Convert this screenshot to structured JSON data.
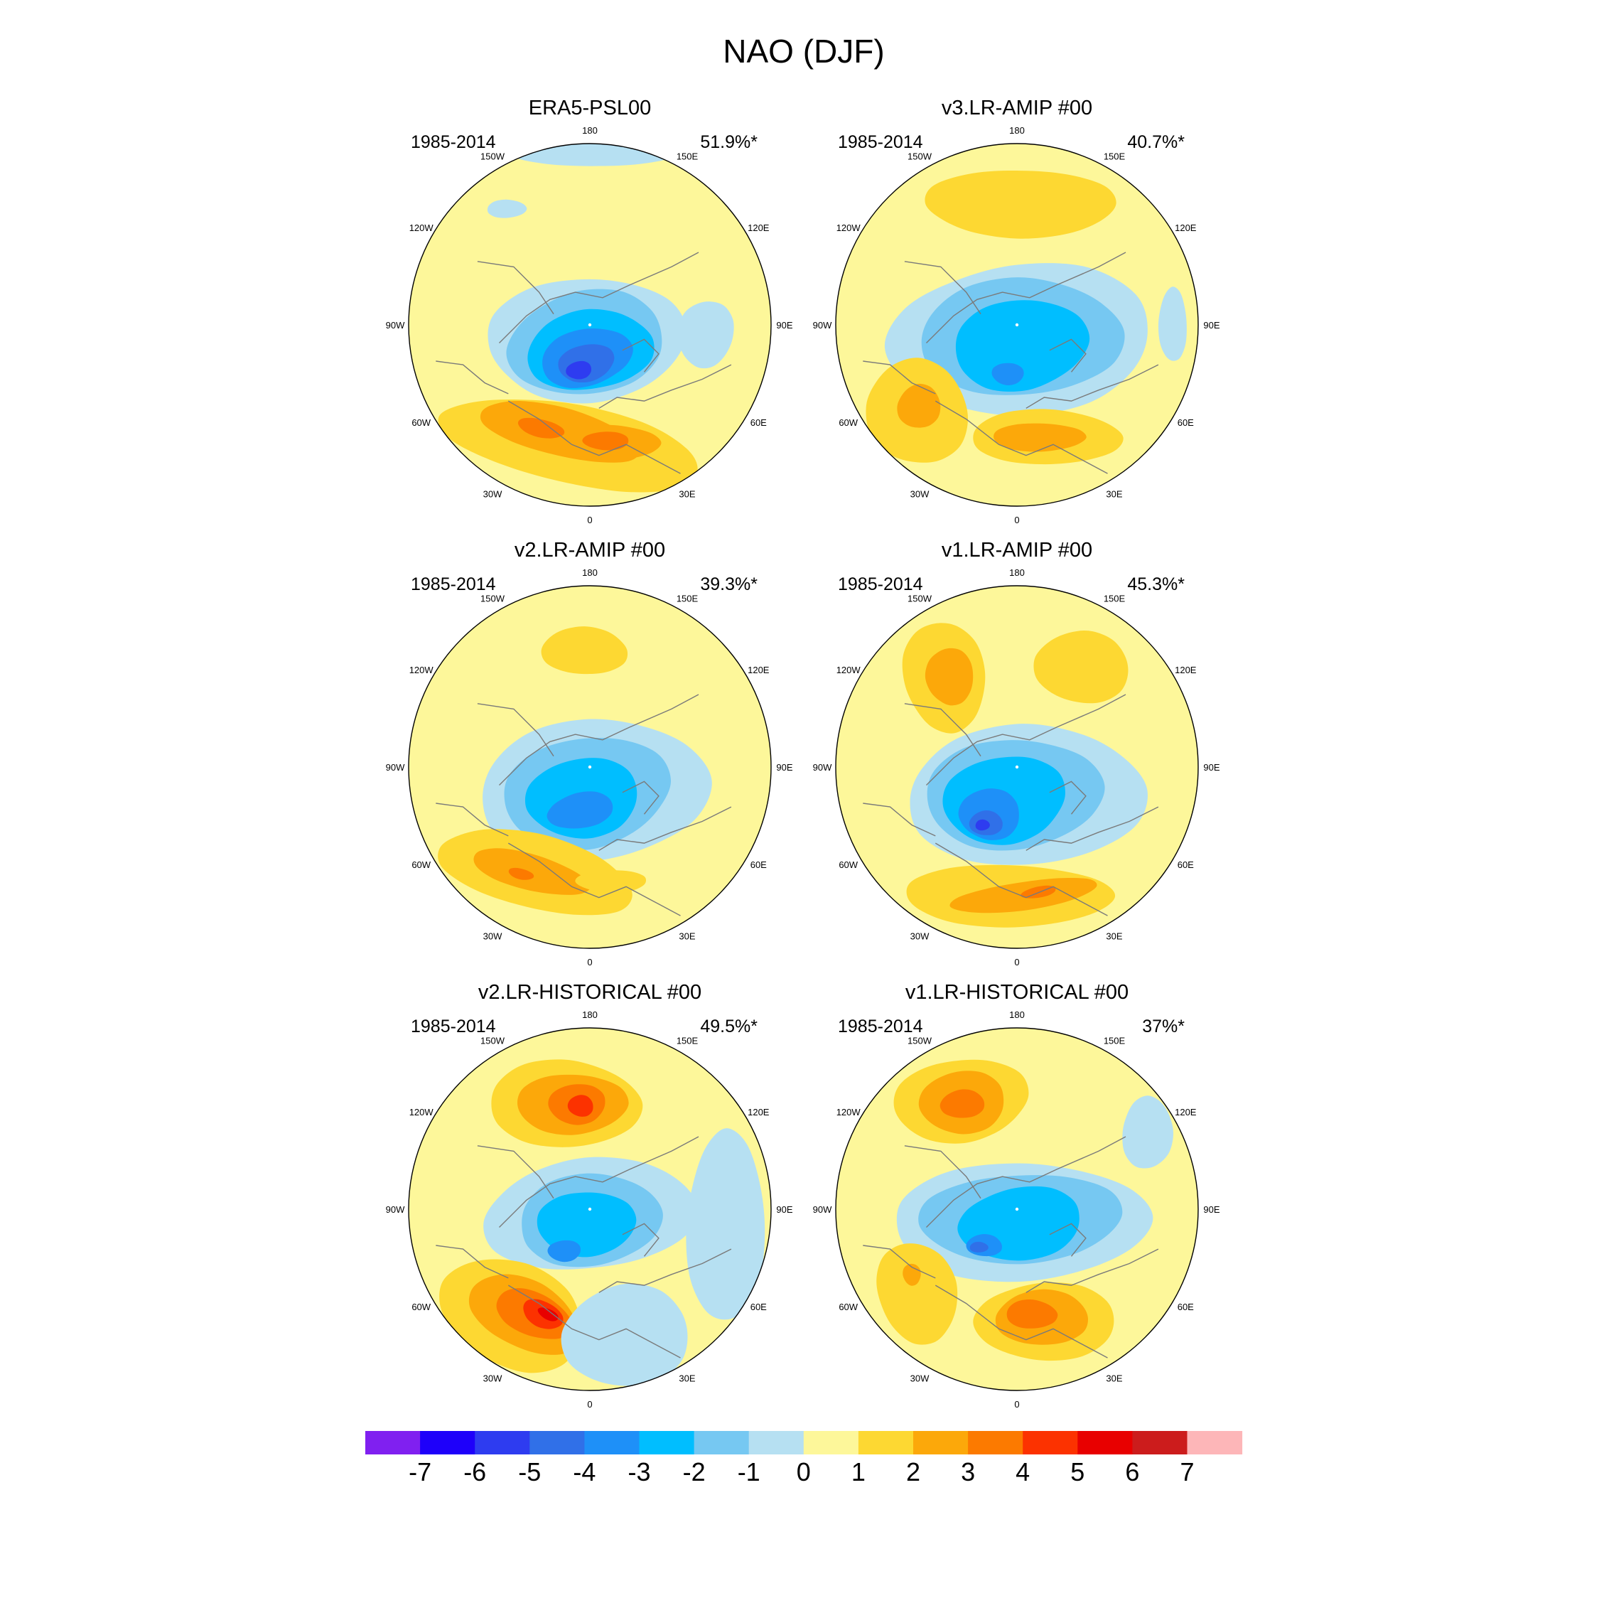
{
  "title": "NAO (DJF)",
  "chart_data": {
    "type": "heatmap",
    "title": "NAO (DJF)",
    "projection": "north polar stereographic",
    "lon_labels": [
      "180",
      "150E",
      "120E",
      "90E",
      "60E",
      "30E",
      "0",
      "30W",
      "60W",
      "90W",
      "120W",
      "150W"
    ],
    "panels": [
      {
        "name": "ERA5-PSL00",
        "period": "1985-2014",
        "variance": "51.9%*",
        "min": -6,
        "max": 5
      },
      {
        "name": "v3.LR-AMIP  #00",
        "period": "1985-2014",
        "variance": "40.7%*",
        "min": -4,
        "max": 3
      },
      {
        "name": "v2.LR-AMIP  #00",
        "period": "1985-2014",
        "variance": "39.3%*",
        "min": -5,
        "max": 3
      },
      {
        "name": "v1.LR-AMIP  #00",
        "period": "1985-2014",
        "variance": "45.3%*",
        "min": -6,
        "max": 3
      },
      {
        "name": "v2.LR-HISTORICAL  #00",
        "period": "1985-2014",
        "variance": "49.5%*",
        "min": -5,
        "max": 5
      },
      {
        "name": "v1.LR-HISTORICAL  #00",
        "period": "1985-2014",
        "variance": "37%*",
        "min": -5,
        "max": 4
      }
    ],
    "colorbar": {
      "labels": [
        "-7",
        "-6",
        "-5",
        "-4",
        "-3",
        "-2",
        "-1",
        "0",
        "1",
        "2",
        "3",
        "4",
        "5",
        "6",
        "7"
      ],
      "colors": [
        "#8020f0",
        "#1e00fa",
        "#2e3cf0",
        "#3070e8",
        "#1e90f8",
        "#00beff",
        "#76c8f2",
        "#b6e0f2",
        "#fdf79a",
        "#fdd832",
        "#fca80a",
        "#fc7a00",
        "#fc3200",
        "#e80000",
        "#cc1c1c",
        "#fdb6b8"
      ]
    }
  }
}
